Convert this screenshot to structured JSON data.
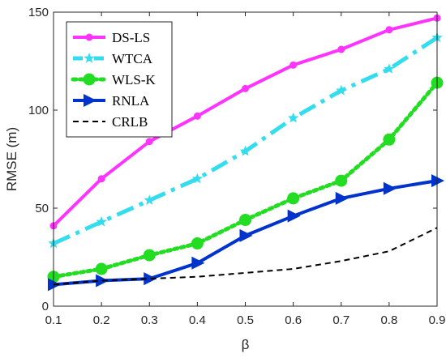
{
  "chart_data": {
    "type": "line",
    "xlabel": "β",
    "ylabel": "RMSE (m)",
    "xlim": [
      0.1,
      0.9
    ],
    "ylim": [
      0,
      150
    ],
    "x_ticks": [
      "0.1",
      "0.2",
      "0.3",
      "0.4",
      "0.5",
      "0.6",
      "0.7",
      "0.8",
      "0.9"
    ],
    "y_ticks": [
      "0",
      "50",
      "100",
      "150"
    ],
    "grid": false,
    "legend_position": "top-left",
    "x": [
      0.1,
      0.2,
      0.3,
      0.4,
      0.5,
      0.6,
      0.7,
      0.8,
      0.9
    ],
    "series": [
      {
        "name": "DS-LS",
        "color": "#ff33ff",
        "line": "solid",
        "marker": "circle",
        "values": [
          41,
          65,
          84,
          97,
          111,
          123,
          131,
          141,
          147
        ]
      },
      {
        "name": "WTCA",
        "color": "#33ddee",
        "line": "dash-dot",
        "marker": "star",
        "values": [
          32,
          43,
          54,
          65,
          79,
          96,
          110,
          121,
          137
        ]
      },
      {
        "name": "WLS-K",
        "color": "#22dd22",
        "line": "dotted",
        "marker": "big-circle",
        "values": [
          15,
          19,
          26,
          32,
          44,
          55,
          64,
          85,
          114
        ]
      },
      {
        "name": "RNLA",
        "color": "#0033cc",
        "line": "solid",
        "marker": "triangle-right",
        "values": [
          11,
          13,
          14,
          22,
          36,
          46,
          55,
          60,
          64
        ]
      },
      {
        "name": "CRLB",
        "color": "#000000",
        "line": "dashed",
        "marker": "none",
        "values": [
          11,
          13,
          14,
          15,
          17,
          19,
          23,
          28,
          40
        ]
      }
    ]
  }
}
